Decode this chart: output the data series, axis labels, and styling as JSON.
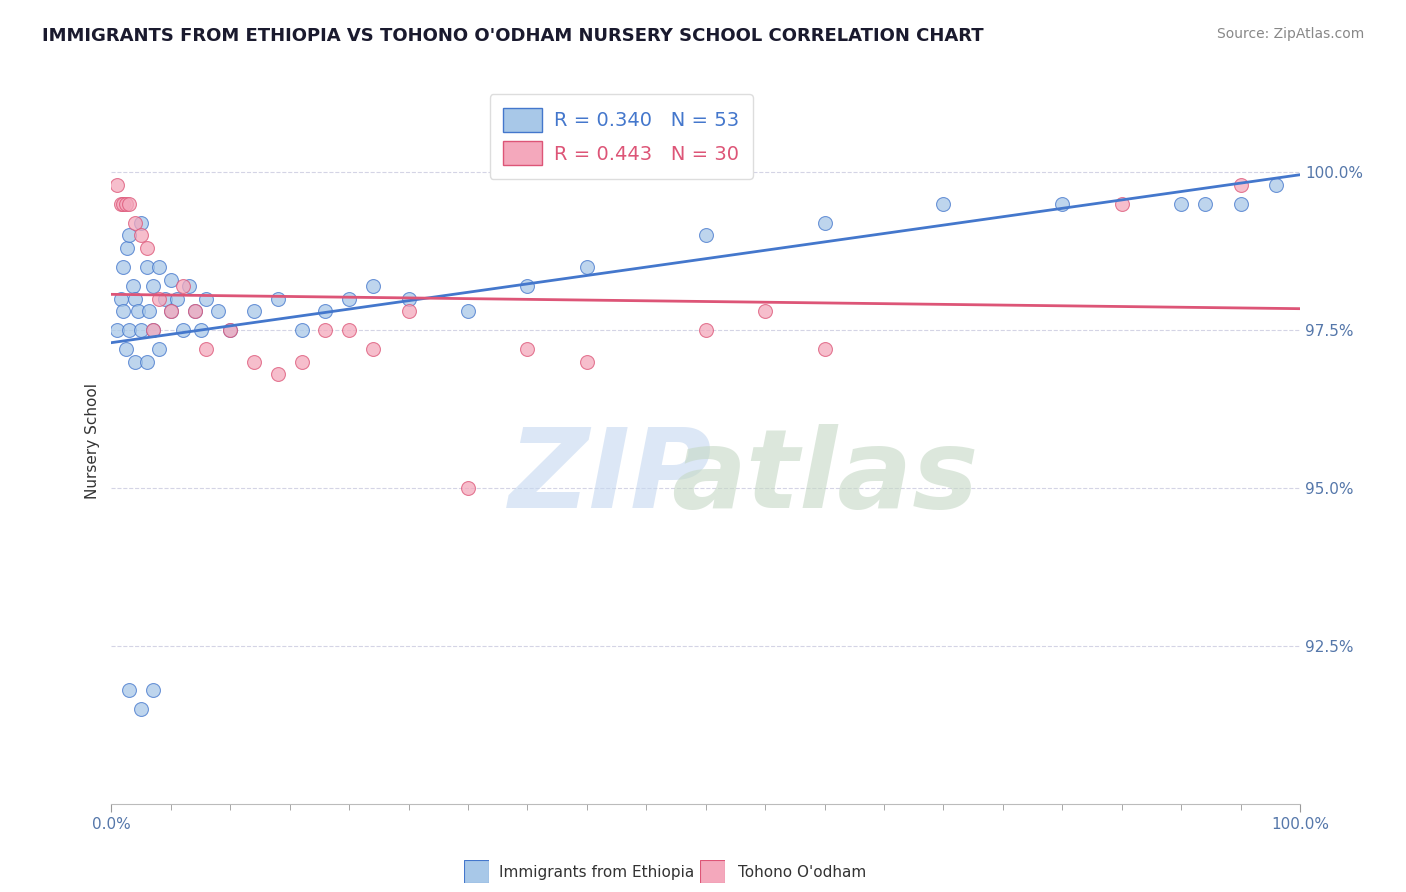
{
  "title": "IMMIGRANTS FROM ETHIOPIA VS TOHONO O'ODHAM NURSERY SCHOOL CORRELATION CHART",
  "source": "Source: ZipAtlas.com",
  "ylabel": "Nursery School",
  "legend_label1": "Immigrants from Ethiopia",
  "legend_label2": "Tohono O'odham",
  "R1": 0.34,
  "N1": 53,
  "R2": 0.443,
  "N2": 30,
  "color1": "#A8C8E8",
  "color2": "#F4A8BC",
  "line_color1": "#4477CC",
  "line_color2": "#DD5577",
  "xlim": [
    0,
    100
  ],
  "ylim": [
    90.0,
    101.5
  ],
  "yticks": [
    92.5,
    95.0,
    97.5,
    100.0
  ],
  "ytick_labels": [
    "92.5%",
    "95.0%",
    "97.5%",
    "100.0%"
  ],
  "blue_x": [
    0.5,
    0.8,
    1.0,
    1.0,
    1.2,
    1.3,
    1.5,
    1.5,
    1.8,
    2.0,
    2.0,
    2.2,
    2.5,
    2.5,
    3.0,
    3.0,
    3.2,
    3.5,
    3.5,
    4.0,
    4.0,
    4.5,
    5.0,
    5.0,
    5.5,
    6.0,
    6.5,
    7.0,
    7.5,
    8.0,
    9.0,
    10.0,
    12.0,
    14.0,
    16.0,
    18.0,
    20.0,
    22.0,
    25.0,
    30.0,
    35.0,
    40.0,
    1.5,
    2.5,
    3.5,
    50.0,
    60.0,
    70.0,
    80.0,
    90.0,
    92.0,
    95.0,
    98.0
  ],
  "blue_y": [
    97.5,
    98.0,
    97.8,
    98.5,
    97.2,
    98.8,
    97.5,
    99.0,
    98.2,
    97.0,
    98.0,
    97.8,
    99.2,
    97.5,
    98.5,
    97.0,
    97.8,
    98.2,
    97.5,
    98.5,
    97.2,
    98.0,
    97.8,
    98.3,
    98.0,
    97.5,
    98.2,
    97.8,
    97.5,
    98.0,
    97.8,
    97.5,
    97.8,
    98.0,
    97.5,
    97.8,
    98.0,
    98.2,
    98.0,
    97.8,
    98.2,
    98.5,
    91.8,
    91.5,
    91.8,
    99.0,
    99.2,
    99.5,
    99.5,
    99.5,
    99.5,
    99.5,
    99.8
  ],
  "pink_x": [
    0.5,
    0.8,
    1.0,
    1.2,
    1.5,
    2.0,
    2.5,
    3.0,
    3.5,
    4.0,
    5.0,
    6.0,
    7.0,
    8.0,
    10.0,
    12.0,
    14.0,
    16.0,
    18.0,
    20.0,
    22.0,
    25.0,
    30.0,
    35.0,
    40.0,
    50.0,
    55.0,
    60.0,
    85.0,
    95.0
  ],
  "pink_y": [
    99.8,
    99.5,
    99.5,
    99.5,
    99.5,
    99.2,
    99.0,
    98.8,
    97.5,
    98.0,
    97.8,
    98.2,
    97.8,
    97.2,
    97.5,
    97.0,
    96.8,
    97.0,
    97.5,
    97.5,
    97.2,
    97.8,
    95.0,
    97.2,
    97.0,
    97.5,
    97.8,
    97.2,
    99.5,
    99.8
  ]
}
